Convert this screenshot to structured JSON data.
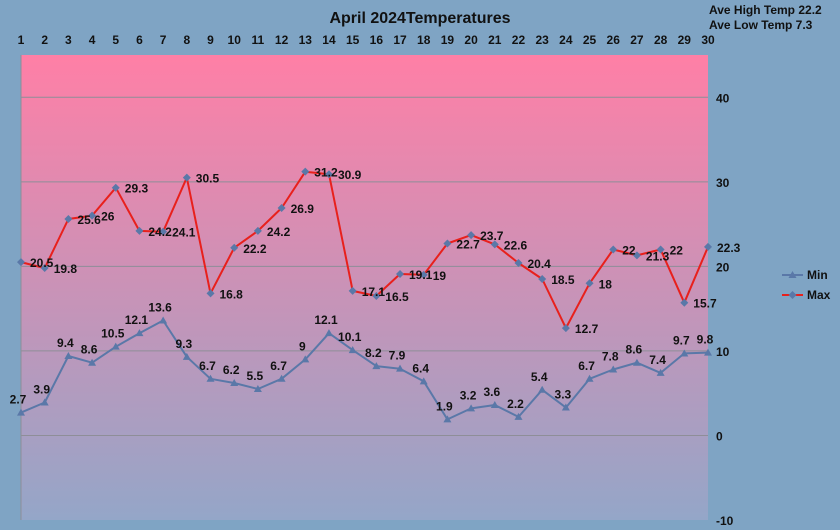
{
  "chart_data": {
    "type": "line",
    "title": "April 2024Temperatures",
    "annotations": [
      "Ave High Temp 22.2",
      "Ave Low Temp 7.3"
    ],
    "categories": [
      "1",
      "2",
      "3",
      "4",
      "5",
      "6",
      "7",
      "8",
      "9",
      "10",
      "11",
      "12",
      "13",
      "14",
      "15",
      "16",
      "17",
      "18",
      "19",
      "20",
      "21",
      "22",
      "23",
      "24",
      "25",
      "26",
      "27",
      "28",
      "29",
      "30"
    ],
    "x_axis_position": "top",
    "y_axis_position": "right",
    "ylim": [
      -10,
      45
    ],
    "y_ticks": [
      -10,
      0,
      10,
      20,
      30,
      40
    ],
    "grid": true,
    "legend": "right",
    "series": [
      {
        "name": "Min",
        "color": "#5a78a8",
        "marker": "triangle",
        "values": [
          2.7,
          3.9,
          9.4,
          8.6,
          10.5,
          12.1,
          13.6,
          9.3,
          6.7,
          6.2,
          5.5,
          6.7,
          9,
          12.1,
          10.1,
          8.2,
          7.9,
          6.4,
          1.9,
          3.2,
          3.6,
          2.2,
          5.4,
          3.3,
          6.7,
          7.8,
          8.6,
          7.4,
          9.7,
          9.8
        ]
      },
      {
        "name": "Max",
        "color": "#e8201c",
        "marker": "diamond",
        "values": [
          20.5,
          19.8,
          25.6,
          26,
          29.3,
          24.2,
          24.1,
          30.5,
          16.8,
          22.2,
          24.2,
          26.9,
          31.2,
          30.9,
          17.1,
          16.5,
          19.1,
          19,
          22.7,
          23.7,
          22.6,
          20.4,
          18.5,
          12.7,
          18,
          22,
          21.3,
          22,
          15.7,
          22.3
        ]
      }
    ],
    "background_gradient": [
      "#ff7fa6",
      "#94a6c8"
    ],
    "label_color": "#111111"
  }
}
